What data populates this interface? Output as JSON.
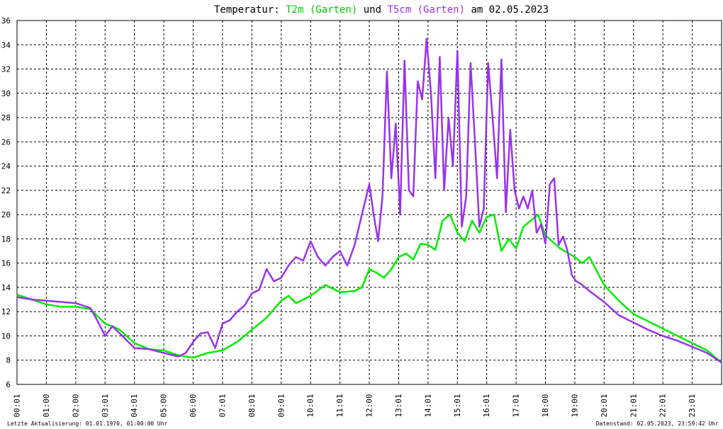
{
  "chart_data": {
    "type": "line",
    "title": {
      "prefix": "Temperatur: ",
      "series1_label": "T2m (Garten)",
      "joiner": " und ",
      "series2_label": "T5cm (Garten)",
      "suffix": " am 02.05.2023"
    },
    "xlabel": "",
    "ylabel": "",
    "ylim": [
      6,
      36
    ],
    "yticks": [
      "6",
      "8",
      "10",
      "12",
      "14",
      "16",
      "18",
      "20",
      "22",
      "24",
      "26",
      "28",
      "30",
      "32",
      "34",
      "36"
    ],
    "xlim": [
      0,
      24
    ],
    "xticks": [
      "00:01",
      "01:00",
      "02:00",
      "03:01",
      "04:01",
      "05:00",
      "06:00",
      "07:01",
      "08:01",
      "09:01",
      "10:01",
      "11:01",
      "12:00",
      "13:01",
      "14:01",
      "15:01",
      "16:01",
      "17:01",
      "18:00",
      "19:00",
      "20:01",
      "21:01",
      "22:01",
      "23:01"
    ],
    "grid": true,
    "series": [
      {
        "color": "#00ee00",
        "x": [
          0,
          0.5,
          1,
          1.5,
          2,
          2.5,
          3,
          3.25,
          3.5,
          4,
          4.5,
          5,
          5.5,
          6,
          6.5,
          7,
          7.5,
          8,
          8.25,
          8.5,
          8.75,
          9,
          9.25,
          9.5,
          10,
          10.5,
          11,
          11.5,
          11.75,
          12,
          12.25,
          12.5,
          12.75,
          13,
          13.25,
          13.5,
          13.75,
          14,
          14.25,
          14.5,
          14.75,
          15,
          15.25,
          15.5,
          15.75,
          16,
          16.25,
          16.5,
          16.75,
          17,
          17.25,
          17.5,
          17.75,
          18,
          18.5,
          19,
          19.25,
          19.5,
          20,
          20.5,
          21,
          21.5,
          22,
          22.5,
          23,
          23.5,
          24
        ],
        "y": [
          13.4,
          13.0,
          12.6,
          12.4,
          12.4,
          12.2,
          11.0,
          10.8,
          10.5,
          9.4,
          8.9,
          8.8,
          8.4,
          8.2,
          8.6,
          8.8,
          9.5,
          10.5,
          11.0,
          11.5,
          12.2,
          12.9,
          13.3,
          12.7,
          13.3,
          14.2,
          13.6,
          13.7,
          14.0,
          15.5,
          15.2,
          14.8,
          15.5,
          16.5,
          16.8,
          16.3,
          17.6,
          17.5,
          17.1,
          19.5,
          20.0,
          18.5,
          17.8,
          19.5,
          18.5,
          19.8,
          20.0,
          17.0,
          18.0,
          17.2,
          19.0,
          19.5,
          20.0,
          18.3,
          17.2,
          16.5,
          16.0,
          16.5,
          14.2,
          12.9,
          11.8,
          11.2,
          10.6,
          10.0,
          9.4,
          8.8,
          7.8
        ]
      },
      {
        "color": "#9933ee",
        "x": [
          0,
          0.5,
          1,
          1.5,
          2,
          2.5,
          2.75,
          3,
          3.25,
          3.5,
          4,
          4.5,
          5,
          5.5,
          5.75,
          6,
          6.25,
          6.5,
          6.75,
          7,
          7.25,
          7.5,
          7.75,
          8,
          8.25,
          8.5,
          8.75,
          9,
          9.25,
          9.5,
          9.75,
          10,
          10.25,
          10.5,
          10.75,
          11,
          11.25,
          11.5,
          11.75,
          12,
          12.15,
          12.3,
          12.45,
          12.6,
          12.75,
          12.9,
          13.05,
          13.2,
          13.35,
          13.5,
          13.65,
          13.8,
          13.95,
          14.1,
          14.25,
          14.4,
          14.55,
          14.7,
          14.85,
          15,
          15.15,
          15.3,
          15.45,
          15.6,
          15.75,
          15.9,
          16.05,
          16.2,
          16.35,
          16.5,
          16.65,
          16.8,
          16.95,
          17.1,
          17.25,
          17.4,
          17.55,
          17.7,
          17.85,
          18,
          18.15,
          18.3,
          18.45,
          18.6,
          18.75,
          18.9,
          19.05,
          19.2,
          19.35,
          19.5,
          20,
          20.5,
          21,
          21.5,
          22,
          22.5,
          23,
          23.5,
          24
        ],
        "y": [
          13.2,
          13.0,
          12.9,
          12.8,
          12.7,
          12.3,
          11.2,
          10.0,
          10.8,
          10.2,
          9.0,
          8.9,
          8.6,
          8.3,
          8.6,
          9.5,
          10.2,
          10.3,
          9.0,
          11.0,
          11.3,
          12.0,
          12.5,
          13.5,
          13.8,
          15.5,
          14.5,
          14.8,
          15.8,
          16.5,
          16.2,
          17.8,
          16.5,
          15.8,
          16.5,
          17.0,
          15.8,
          17.5,
          20.0,
          22.5,
          20.0,
          17.8,
          21.5,
          31.8,
          23.0,
          27.5,
          20.0,
          32.7,
          22.0,
          21.5,
          31.0,
          29.5,
          34.5,
          30.0,
          23.0,
          33.0,
          22.0,
          28.0,
          24.0,
          33.5,
          19.0,
          21.5,
          32.5,
          26.0,
          19.0,
          20.5,
          32.5,
          28.0,
          23.0,
          32.8,
          20.2,
          27.0,
          22.0,
          20.5,
          21.5,
          20.5,
          22.0,
          18.5,
          19.2,
          17.6,
          22.5,
          23.0,
          17.5,
          18.2,
          17.0,
          15.0,
          14.5,
          14.3,
          14.0,
          13.7,
          12.8,
          11.7,
          11.1,
          10.5,
          10.0,
          9.6,
          9.1,
          8.6,
          7.8
        ]
      }
    ]
  },
  "footer": {
    "left": "Letzte Aktualisierung: 01.01.1970, 01:00:00 Uhr",
    "right": "Datenstand: 02.05.2023, 23:59:42 Uhr"
  }
}
